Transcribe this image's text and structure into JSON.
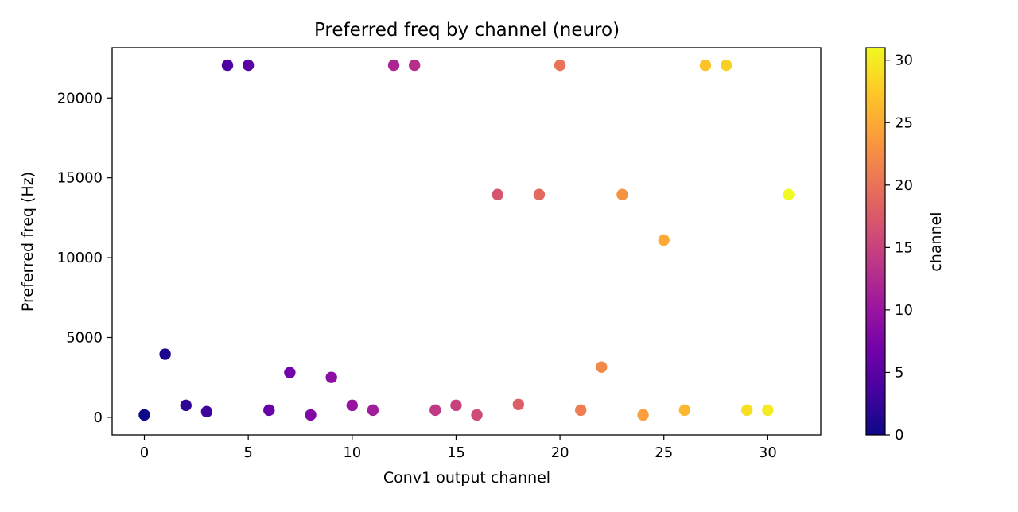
{
  "chart_data": {
    "type": "scatter",
    "title": "Preferred freq by channel (neuro)",
    "xlabel": "Conv1 output channel",
    "ylabel": "Preferred freq (Hz)",
    "xlim": [
      -1.55,
      32.55
    ],
    "ylim": [
      -1100,
      23150
    ],
    "xticks": [
      0,
      5,
      10,
      15,
      20,
      25,
      30
    ],
    "yticks": [
      0,
      5000,
      10000,
      15000,
      20000
    ],
    "grid": false,
    "colormap": "plasma",
    "colorbar": {
      "label": "channel",
      "range": [
        0,
        31
      ],
      "ticks": [
        0,
        5,
        10,
        15,
        20,
        25,
        30
      ],
      "stops": [
        "#0d0887",
        "#46039f",
        "#7201a8",
        "#9c179e",
        "#bd3786",
        "#d8576b",
        "#ed7953",
        "#fb9f3a",
        "#fdca26",
        "#f0f921"
      ]
    },
    "x": [
      0,
      1,
      2,
      3,
      4,
      5,
      6,
      7,
      8,
      9,
      10,
      11,
      12,
      13,
      14,
      15,
      16,
      17,
      18,
      19,
      20,
      21,
      22,
      23,
      24,
      25,
      26,
      27,
      28,
      29,
      30,
      31
    ],
    "y": [
      150,
      3950,
      750,
      350,
      22050,
      22050,
      450,
      2800,
      150,
      2500,
      750,
      450,
      22050,
      22050,
      450,
      750,
      150,
      13950,
      800,
      13950,
      22050,
      450,
      3150,
      13950,
      150,
      11100,
      450,
      22050,
      22050,
      450,
      450,
      13950
    ]
  }
}
